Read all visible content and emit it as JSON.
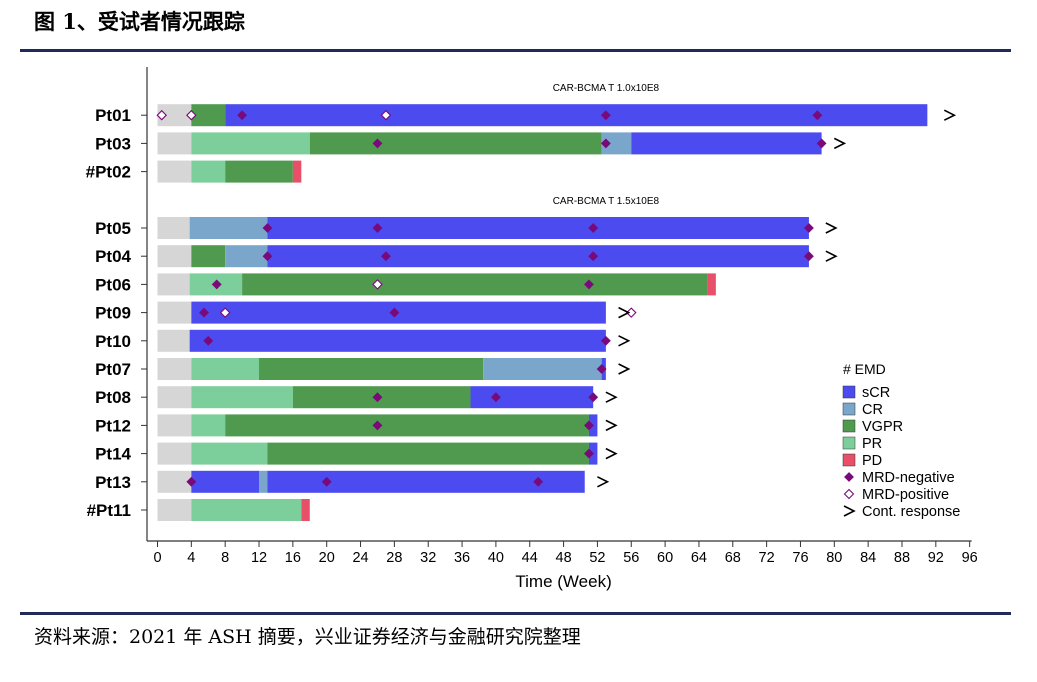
{
  "figure_title": "图 1、受试者情况跟踪",
  "source_note": "资料来源：2021 年 ASH 摘要，兴业证券经济与金融研究院整理",
  "colors": {
    "pre": "#d6d6d6",
    "sCR": "#4b4bf0",
    "CR": "#7aa6cc",
    "VGPR": "#4f9a4f",
    "PR": "#7ccf9a",
    "PD": "#e8506a",
    "mrd": "#7a0a7a",
    "axis": "#333333",
    "rule": "#1f2a5a"
  },
  "chart_data": {
    "type": "swimmer",
    "xlabel": "Time (Week)",
    "xlim": [
      0,
      96
    ],
    "xticks": [
      0,
      4,
      8,
      12,
      16,
      20,
      24,
      28,
      32,
      36,
      40,
      44,
      48,
      52,
      56,
      60,
      64,
      68,
      72,
      76,
      80,
      84,
      88,
      92,
      96
    ],
    "group_labels": [
      {
        "text": "CAR-BCMA T 1.0x10E8",
        "slot": 0
      },
      {
        "text": "CAR-BCMA T 1.5x10E8",
        "slot": 4
      }
    ],
    "legend": {
      "header": "# EMD",
      "items": [
        {
          "label": "sCR",
          "kind": "box",
          "color_key": "sCR"
        },
        {
          "label": "CR",
          "kind": "box",
          "color_key": "CR"
        },
        {
          "label": "VGPR",
          "kind": "box",
          "color_key": "VGPR"
        },
        {
          "label": "PR",
          "kind": "box",
          "color_key": "PR"
        },
        {
          "label": "PD",
          "kind": "box",
          "color_key": "PD"
        },
        {
          "label": "MRD-negative",
          "kind": "diamond-filled",
          "color_key": "mrd"
        },
        {
          "label": "MRD-positive",
          "kind": "diamond-open",
          "color_key": "mrd"
        },
        {
          "label": "Cont. response",
          "kind": "arrow",
          "color_key": "axis"
        }
      ]
    },
    "patients": [
      {
        "id": "Pt01",
        "slot": 1,
        "segments": [
          [
            "pre",
            0,
            4
          ],
          [
            "VGPR",
            4,
            8
          ],
          [
            "sCR",
            8,
            91
          ]
        ],
        "mrd_neg": [
          10,
          53,
          78
        ],
        "mrd_pos": [
          0.5,
          4,
          27
        ],
        "cont": 93
      },
      {
        "id": "Pt03",
        "slot": 2,
        "segments": [
          [
            "pre",
            0,
            4
          ],
          [
            "PR",
            4,
            18
          ],
          [
            "VGPR",
            18,
            52.5
          ],
          [
            "CR",
            52.5,
            56
          ],
          [
            "sCR",
            56,
            78.5
          ]
        ],
        "mrd_neg": [
          26,
          53,
          78.5
        ],
        "mrd_pos": [],
        "cont": 80
      },
      {
        "id": "#Pt02",
        "slot": 3,
        "segments": [
          [
            "pre",
            0,
            4
          ],
          [
            "PR",
            4,
            8
          ],
          [
            "VGPR",
            8,
            16
          ],
          [
            "PD",
            16,
            17
          ]
        ],
        "mrd_neg": [],
        "mrd_pos": [],
        "cont": null
      },
      {
        "id": "Pt05",
        "slot": 5,
        "segments": [
          [
            "pre",
            0,
            3.8
          ],
          [
            "CR",
            3.8,
            13
          ],
          [
            "sCR",
            13,
            77
          ]
        ],
        "mrd_neg": [
          13,
          26,
          51.5,
          77
        ],
        "mrd_pos": [],
        "cont": 79
      },
      {
        "id": "Pt04",
        "slot": 6,
        "segments": [
          [
            "pre",
            0,
            4
          ],
          [
            "VGPR",
            4,
            8
          ],
          [
            "CR",
            8,
            13
          ],
          [
            "sCR",
            13,
            77
          ]
        ],
        "mrd_neg": [
          13,
          27,
          51.5,
          77
        ],
        "mrd_pos": [],
        "cont": 79
      },
      {
        "id": "Pt06",
        "slot": 7,
        "segments": [
          [
            "pre",
            0,
            3.8
          ],
          [
            "PR",
            3.8,
            10
          ],
          [
            "VGPR",
            10,
            65
          ],
          [
            "PD",
            65,
            66
          ]
        ],
        "mrd_neg": [
          7,
          51
        ],
        "mrd_pos": [
          26
        ],
        "cont": null
      },
      {
        "id": "Pt09",
        "slot": 8,
        "segments": [
          [
            "pre",
            0,
            4
          ],
          [
            "sCR",
            4,
            53
          ]
        ],
        "mrd_neg": [
          5.5,
          28
        ],
        "mrd_pos": [
          8,
          56
        ],
        "cont": 54.5
      },
      {
        "id": "Pt10",
        "slot": 9,
        "segments": [
          [
            "pre",
            0,
            3.8
          ],
          [
            "sCR",
            3.8,
            53
          ]
        ],
        "mrd_neg": [
          6,
          53
        ],
        "mrd_pos": [],
        "cont": 54.5
      },
      {
        "id": "Pt07",
        "slot": 10,
        "segments": [
          [
            "pre",
            0,
            4
          ],
          [
            "PR",
            4,
            12
          ],
          [
            "VGPR",
            12,
            38.5
          ],
          [
            "CR",
            38.5,
            52.5
          ],
          [
            "sCR",
            52.5,
            53
          ]
        ],
        "mrd_neg": [
          52.5
        ],
        "mrd_pos": [],
        "cont": 54.5
      },
      {
        "id": "Pt08",
        "slot": 11,
        "segments": [
          [
            "pre",
            0,
            4
          ],
          [
            "PR",
            4,
            16
          ],
          [
            "VGPR",
            16,
            37
          ],
          [
            "sCR",
            37,
            51.5
          ]
        ],
        "mrd_neg": [
          26,
          40,
          51.5
        ],
        "mrd_pos": [],
        "cont": 53
      },
      {
        "id": "Pt12",
        "slot": 12,
        "segments": [
          [
            "pre",
            0,
            4
          ],
          [
            "PR",
            4,
            8
          ],
          [
            "VGPR",
            8,
            51
          ],
          [
            "sCR",
            51,
            52
          ]
        ],
        "mrd_neg": [
          26,
          51
        ],
        "mrd_pos": [],
        "cont": 53
      },
      {
        "id": "Pt14",
        "slot": 13,
        "segments": [
          [
            "pre",
            0,
            4
          ],
          [
            "PR",
            4,
            13
          ],
          [
            "VGPR",
            13,
            51
          ],
          [
            "sCR",
            51,
            52
          ]
        ],
        "mrd_neg": [
          51
        ],
        "mrd_pos": [],
        "cont": 53
      },
      {
        "id": "Pt13",
        "slot": 14,
        "segments": [
          [
            "pre",
            0,
            4
          ],
          [
            "sCR",
            4,
            12
          ],
          [
            "CR",
            12,
            13
          ],
          [
            "sCR",
            13,
            50.5
          ]
        ],
        "mrd_neg": [
          4,
          20,
          45
        ],
        "mrd_pos": [],
        "cont": 52
      },
      {
        "id": "#Pt11",
        "slot": 15,
        "segments": [
          [
            "pre",
            0,
            4
          ],
          [
            "PR",
            4,
            17
          ],
          [
            "PD",
            17,
            18
          ]
        ],
        "mrd_neg": [],
        "mrd_pos": [],
        "cont": null
      }
    ]
  }
}
